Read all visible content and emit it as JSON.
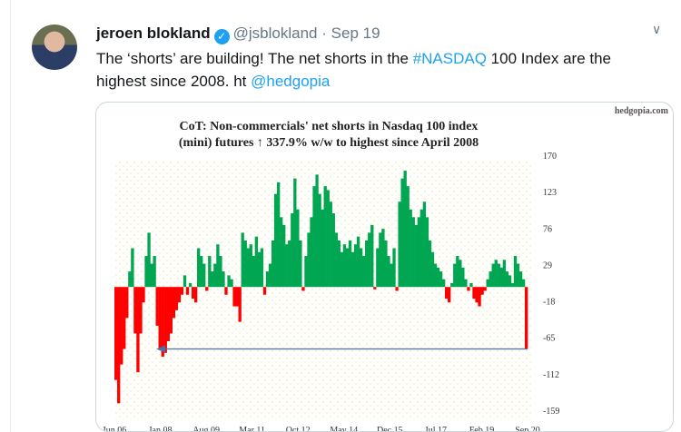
{
  "tweet": {
    "author_name": "jeroen blokland",
    "verified_icon": "verified-badge-icon",
    "handle": "@jsblokland",
    "separator": "·",
    "date": "Sep 19",
    "text_1": "The ‘shorts’ are building! The net shorts in the ",
    "hashtag": "#NASDAQ",
    "text_2": " 100 Index are the highest since 2008. ht ",
    "mention": "@hedgopia",
    "link_color": "#1da1f2"
  },
  "chart_data": {
    "type": "bar",
    "title_line1": "CoT: Non-commercials' net shorts in Nasdaq 100 index",
    "title_line2": "(mini) futures ↑ 337.9% w/w to highest since April 2008",
    "watermark": "hedgopia.com",
    "yticks": [
      170,
      123,
      76,
      29,
      -18,
      -65,
      -112,
      -159
    ],
    "ylim": [
      -159,
      170
    ],
    "xticks": [
      "Jun 06",
      "Jan 08",
      "Aug 09",
      "Mar 11",
      "Oct 12",
      "May 14",
      "Dec 15",
      "Jul 17",
      "Feb 19",
      "Sep 20"
    ],
    "positive_color": "#00a651",
    "negative_color": "#ff0000",
    "arrow_level": -80,
    "values": [
      -120,
      -150,
      -100,
      -80,
      -40,
      20,
      50,
      -60,
      -110,
      -60,
      -20,
      40,
      70,
      30,
      40,
      -50,
      -80,
      -90,
      -85,
      -70,
      -60,
      -40,
      -30,
      -20,
      -10,
      15,
      -10,
      5,
      -15,
      -20,
      50,
      40,
      30,
      -5,
      40,
      20,
      30,
      55,
      40,
      20,
      -10,
      15,
      10,
      -25,
      -25,
      -45,
      70,
      60,
      50,
      55,
      40,
      65,
      45,
      50,
      -10,
      20,
      30,
      60,
      120,
      135,
      90,
      80,
      55,
      60,
      95,
      140,
      100,
      60,
      -5,
      40,
      70,
      90,
      130,
      145,
      120,
      100,
      130,
      125,
      110,
      95,
      70,
      60,
      45,
      55,
      50,
      60,
      45,
      55,
      65,
      50,
      40,
      60,
      70,
      80,
      -3,
      50,
      70,
      75,
      60,
      40,
      30,
      50,
      -5,
      110,
      140,
      150,
      130,
      100,
      90,
      80,
      90,
      100,
      110,
      90,
      60,
      45,
      30,
      25,
      20,
      10,
      -15,
      -20,
      5,
      30,
      40,
      35,
      25,
      10,
      -5,
      5,
      -15,
      -20,
      -25,
      -10,
      -5,
      10,
      20,
      30,
      35,
      30,
      25,
      35,
      20,
      15,
      5,
      40,
      30,
      20,
      10,
      -80
    ]
  }
}
